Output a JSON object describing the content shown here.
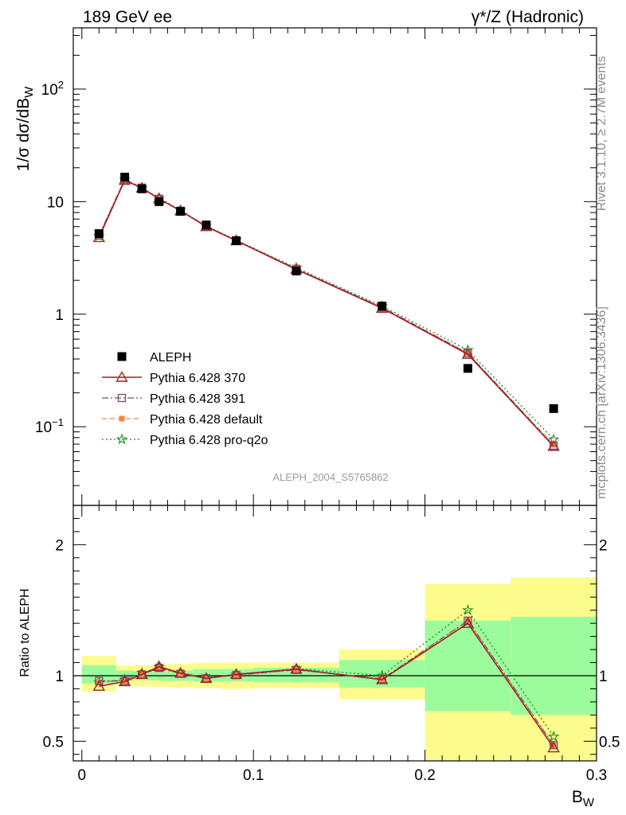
{
  "header": {
    "left": "189 GeV ee",
    "right": "γ*/Z (Hadronic)"
  },
  "side_text": {
    "rivet": "Rivet 3.1.10, ≥ 2.7M events",
    "mcplots": "mcplots.cern.ch [arXiv:1306.3436]"
  },
  "analysis_id": "ALEPH_2004_S5765862",
  "colors": {
    "data": "#000000",
    "p370": "#a11f2c",
    "p391": "#7a4b6b",
    "pdefault": "#f5883a",
    "pq2o": "#1a8a1a",
    "band_green": "#9cfc9c",
    "band_yellow": "#fcfc8c"
  },
  "chart_data": [
    {
      "type": "scatter",
      "panel": "main",
      "ylabel": "1/σ  dσ/dB_W",
      "yscale": "log",
      "ylim": [
        0.02,
        350
      ],
      "xlim": [
        -0.005,
        0.3
      ],
      "y_tick_labels": [
        "10^-1",
        "1",
        "10",
        "10^2"
      ],
      "legend": {
        "position": "middle-left",
        "entries": [
          "ALEPH",
          "Pythia 6.428 370",
          "Pythia 6.428 391",
          "Pythia 6.428 default",
          "Pythia 6.428 pro-q2o"
        ]
      },
      "x": [
        0.01,
        0.025,
        0.035,
        0.045,
        0.0575,
        0.0725,
        0.09,
        0.125,
        0.175,
        0.225,
        0.275
      ],
      "series": [
        {
          "name": "ALEPH",
          "style": "marker",
          "values": [
            5.2,
            16.5,
            13.0,
            10.0,
            8.2,
            6.2,
            4.5,
            2.42,
            1.18,
            0.33,
            0.145
          ]
        },
        {
          "name": "Pythia 6.428 370",
          "style": "solid",
          "values": [
            4.8,
            15.5,
            13.2,
            10.6,
            8.3,
            6.0,
            4.5,
            2.5,
            1.13,
            0.44,
            0.067
          ]
        },
        {
          "name": "Pythia 6.428 391",
          "style": "dashdot",
          "values": [
            5.0,
            15.8,
            13.3,
            10.6,
            8.3,
            6.05,
            4.52,
            2.53,
            1.15,
            0.45,
            0.068
          ]
        },
        {
          "name": "Pythia 6.428 default",
          "style": "dashed",
          "values": [
            5.0,
            15.8,
            13.3,
            10.6,
            8.3,
            6.05,
            4.52,
            2.53,
            1.15,
            0.45,
            0.069
          ]
        },
        {
          "name": "Pythia 6.428 pro-q2o",
          "style": "dotted",
          "values": [
            4.95,
            15.6,
            13.2,
            10.8,
            8.4,
            6.1,
            4.55,
            2.58,
            1.18,
            0.48,
            0.077
          ]
        }
      ]
    },
    {
      "type": "scatter",
      "panel": "ratio",
      "ylabel": "Ratio to ALEPH",
      "xlabel": "B_W",
      "ylim": [
        0.35,
        2.3
      ],
      "xlim": [
        -0.005,
        0.3
      ],
      "x_tick_labels": [
        "0",
        "0.1",
        "0.2",
        "0.3"
      ],
      "y_tick_labels": [
        "0.5",
        "1",
        "2"
      ],
      "bins": [
        [
          0.0,
          0.02
        ],
        [
          0.02,
          0.03
        ],
        [
          0.03,
          0.04
        ],
        [
          0.04,
          0.05
        ],
        [
          0.05,
          0.065
        ],
        [
          0.065,
          0.08
        ],
        [
          0.08,
          0.1
        ],
        [
          0.1,
          0.15
        ],
        [
          0.15,
          0.2
        ],
        [
          0.2,
          0.25
        ],
        [
          0.25,
          0.3
        ]
      ],
      "band_inner": [
        [
          0.94,
          1.08
        ],
        [
          0.96,
          1.04
        ],
        [
          0.965,
          1.035
        ],
        [
          0.965,
          1.035
        ],
        [
          0.96,
          1.04
        ],
        [
          0.955,
          1.05
        ],
        [
          0.955,
          1.05
        ],
        [
          0.95,
          1.06
        ],
        [
          0.91,
          1.12
        ],
        [
          0.73,
          1.42
        ],
        [
          0.7,
          1.45
        ]
      ],
      "band_outer": [
        [
          0.88,
          1.15
        ],
        [
          0.92,
          1.08
        ],
        [
          0.92,
          1.08
        ],
        [
          0.915,
          1.085
        ],
        [
          0.91,
          1.09
        ],
        [
          0.905,
          1.1
        ],
        [
          0.9,
          1.1
        ],
        [
          0.905,
          1.1
        ],
        [
          0.82,
          1.2
        ],
        [
          0.35,
          1.7
        ],
        [
          0.35,
          1.75
        ]
      ],
      "x": [
        0.01,
        0.025,
        0.035,
        0.045,
        0.0575,
        0.0725,
        0.09,
        0.125,
        0.175,
        0.225,
        0.275
      ],
      "series": [
        {
          "name": "Pythia 6.428 370",
          "values": [
            0.92,
            0.955,
            1.01,
            1.07,
            1.02,
            0.98,
            1.01,
            1.05,
            0.97,
            1.4,
            0.45
          ]
        },
        {
          "name": "Pythia 6.428 391",
          "values": [
            0.96,
            0.96,
            1.01,
            1.06,
            1.015,
            0.98,
            1.005,
            1.045,
            0.975,
            1.42,
            0.47
          ]
        },
        {
          "name": "Pythia 6.428 default",
          "values": [
            0.955,
            0.96,
            1.01,
            1.06,
            1.015,
            0.98,
            1.005,
            1.045,
            0.975,
            1.42,
            0.47
          ]
        },
        {
          "name": "Pythia 6.428 pro-q2o",
          "values": [
            0.95,
            0.97,
            1.02,
            1.065,
            1.02,
            0.985,
            1.01,
            1.055,
            1.0,
            1.5,
            0.535
          ]
        }
      ]
    }
  ]
}
